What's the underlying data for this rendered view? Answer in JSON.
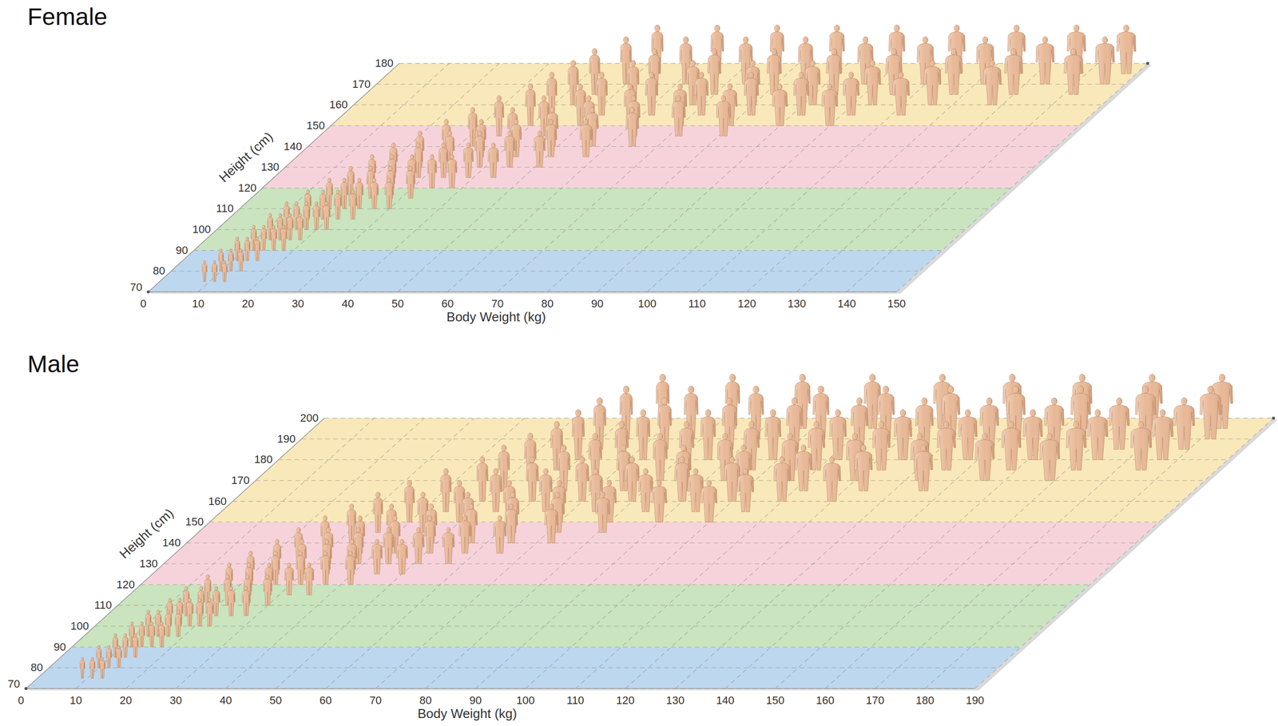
{
  "chart_data": [
    {
      "type": "scatter",
      "title": "Female",
      "x_label": "Body Weight (kg)",
      "y_label": "Height (cm)",
      "xlim": [
        0,
        150
      ],
      "ylim": [
        70,
        180
      ],
      "xticks": [
        0,
        10,
        20,
        30,
        40,
        50,
        60,
        70,
        80,
        90,
        100,
        110,
        120,
        130,
        140,
        150
      ],
      "yticks": [
        70,
        80,
        90,
        100,
        110,
        120,
        130,
        140,
        150,
        160,
        170,
        180
      ],
      "grid": true,
      "marker": "human-figure",
      "color": "#e8b896",
      "bands": [
        {
          "from": 70,
          "to": 90,
          "color": "#bdd7ee"
        },
        {
          "from": 90,
          "to": 120,
          "color": "#c9e4be"
        },
        {
          "from": 120,
          "to": 150,
          "color": "#f6d3da"
        },
        {
          "from": 150,
          "to": 180,
          "color": "#f9e8b9"
        }
      ],
      "x": [
        9,
        11,
        13,
        10,
        12,
        14,
        11,
        13,
        15,
        12,
        14,
        16,
        18,
        13,
        15,
        17,
        19,
        14,
        16,
        18,
        20,
        22,
        16,
        19,
        22,
        25,
        18,
        21,
        24,
        27,
        30,
        20,
        24,
        28,
        32,
        22,
        26,
        30,
        34,
        38,
        24,
        29,
        34,
        39,
        44,
        27,
        33,
        39,
        45,
        51,
        30,
        37,
        44,
        51,
        58,
        33,
        41,
        49,
        57,
        65,
        36,
        45,
        54,
        63,
        72,
        81,
        40,
        50,
        60,
        70,
        80,
        90,
        100,
        42,
        52,
        62,
        72,
        82,
        92,
        102,
        112,
        44,
        56,
        68,
        80,
        92,
        104,
        116,
        128,
        46,
        58,
        70,
        82,
        94,
        106,
        118,
        130,
        142,
        50,
        62,
        74,
        86,
        98,
        110,
        122,
        134,
        146,
        54,
        66,
        78,
        90,
        102,
        114,
        126,
        138,
        148
      ],
      "values": [
        75,
        75,
        75,
        80,
        80,
        80,
        85,
        85,
        85,
        90,
        90,
        90,
        90,
        95,
        95,
        95,
        95,
        100,
        100,
        100,
        100,
        100,
        105,
        105,
        105,
        105,
        110,
        110,
        110,
        110,
        110,
        115,
        115,
        115,
        115,
        120,
        120,
        120,
        120,
        120,
        125,
        125,
        125,
        125,
        125,
        130,
        130,
        130,
        130,
        130,
        135,
        135,
        135,
        135,
        135,
        140,
        140,
        140,
        140,
        140,
        145,
        145,
        145,
        145,
        145,
        145,
        150,
        150,
        150,
        150,
        150,
        150,
        150,
        155,
        155,
        155,
        155,
        155,
        155,
        155,
        155,
        160,
        160,
        160,
        160,
        160,
        160,
        160,
        160,
        165,
        165,
        165,
        165,
        165,
        165,
        165,
        165,
        165,
        170,
        170,
        170,
        170,
        170,
        170,
        170,
        170,
        170,
        175,
        175,
        175,
        175,
        175,
        175,
        175,
        175,
        175
      ]
    },
    {
      "type": "scatter",
      "title": "Male",
      "x_label": "Body Weight (kg)",
      "y_label": "Height (cm)",
      "xlim": [
        0,
        190
      ],
      "ylim": [
        70,
        200
      ],
      "xticks": [
        0,
        10,
        20,
        30,
        40,
        50,
        60,
        70,
        80,
        90,
        100,
        110,
        120,
        130,
        140,
        150,
        160,
        170,
        180,
        190
      ],
      "yticks": [
        70,
        80,
        90,
        100,
        110,
        120,
        130,
        140,
        150,
        160,
        170,
        180,
        190,
        200
      ],
      "grid": true,
      "marker": "human-figure",
      "color": "#e8b896",
      "bands": [
        {
          "from": 70,
          "to": 90,
          "color": "#bdd7ee"
        },
        {
          "from": 90,
          "to": 120,
          "color": "#c9e4be"
        },
        {
          "from": 120,
          "to": 150,
          "color": "#f6d3da"
        },
        {
          "from": 150,
          "to": 200,
          "color": "#f9e8b9"
        }
      ],
      "x": [
        9,
        11,
        13,
        10,
        12,
        14,
        11,
        13,
        15,
        12,
        14,
        16,
        18,
        13,
        15,
        17,
        19,
        15,
        17,
        19,
        21,
        23,
        16,
        19,
        22,
        25,
        28,
        18,
        22,
        26,
        30,
        20,
        24,
        28,
        32,
        36,
        22,
        27,
        32,
        37,
        42,
        25,
        30,
        35,
        40,
        45,
        50,
        27,
        33,
        39,
        45,
        51,
        57,
        30,
        37,
        44,
        51,
        58,
        65,
        33,
        41,
        49,
        57,
        65,
        73,
        36,
        45,
        54,
        63,
        72,
        81,
        40,
        50,
        60,
        70,
        80,
        90,
        100,
        45,
        55,
        65,
        75,
        85,
        95,
        105,
        50,
        60,
        70,
        80,
        90,
        100,
        110,
        120,
        52,
        64,
        76,
        88,
        100,
        112,
        124,
        136,
        55,
        68,
        81,
        94,
        107,
        120,
        133,
        146,
        159,
        58,
        71,
        84,
        97,
        110,
        123,
        136,
        149,
        162,
        175,
        60,
        73,
        86,
        99,
        112,
        125,
        138,
        151,
        164,
        177,
        62,
        75,
        88,
        101,
        114,
        127,
        140,
        153,
        166,
        179,
        65,
        78,
        91,
        104,
        117,
        130,
        143,
        156,
        169,
        182,
        70,
        84,
        98,
        112,
        126,
        140,
        154,
        168,
        182
      ],
      "values": [
        75,
        75,
        75,
        80,
        80,
        80,
        85,
        85,
        85,
        90,
        90,
        90,
        90,
        95,
        95,
        95,
        95,
        100,
        100,
        100,
        100,
        100,
        105,
        105,
        105,
        105,
        105,
        110,
        110,
        110,
        110,
        115,
        115,
        115,
        115,
        115,
        120,
        120,
        120,
        120,
        120,
        125,
        125,
        125,
        125,
        125,
        125,
        130,
        130,
        130,
        130,
        130,
        130,
        135,
        135,
        135,
        135,
        135,
        135,
        140,
        140,
        140,
        140,
        140,
        140,
        145,
        145,
        145,
        145,
        145,
        145,
        150,
        150,
        150,
        150,
        150,
        150,
        150,
        155,
        155,
        155,
        155,
        155,
        155,
        155,
        160,
        160,
        160,
        160,
        160,
        160,
        160,
        160,
        165,
        165,
        165,
        165,
        165,
        165,
        165,
        165,
        170,
        170,
        170,
        170,
        170,
        170,
        170,
        170,
        170,
        175,
        175,
        175,
        175,
        175,
        175,
        175,
        175,
        175,
        175,
        180,
        180,
        180,
        180,
        180,
        180,
        180,
        180,
        180,
        180,
        185,
        185,
        185,
        185,
        185,
        185,
        185,
        185,
        185,
        185,
        190,
        190,
        190,
        190,
        190,
        190,
        190,
        190,
        190,
        190,
        195,
        195,
        195,
        195,
        195,
        195,
        195,
        195,
        195
      ]
    }
  ]
}
